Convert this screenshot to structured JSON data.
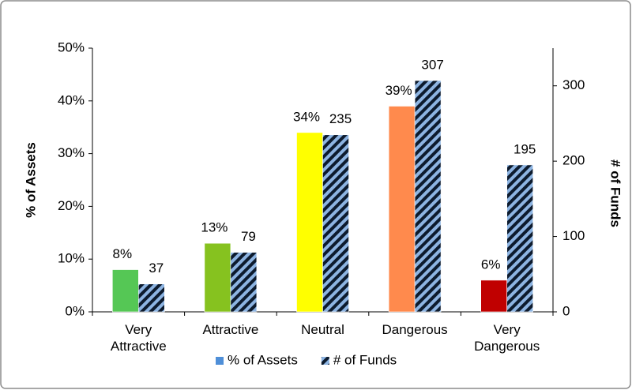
{
  "chart_data": {
    "type": "bar",
    "categories": [
      "Very Attractive",
      "Attractive",
      "Neutral",
      "Dangerous",
      "Very Dangerous"
    ],
    "series": [
      {
        "name": "% of Assets",
        "color": "#4f8fd8",
        "colors": [
          "#55c755",
          "#86c21f",
          "#ffff00",
          "#ff8a4d",
          "#c00000"
        ],
        "values": [
          8,
          13,
          34,
          39,
          6
        ],
        "value_labels": [
          "8%",
          "13%",
          "34%",
          "39%",
          "6%"
        ]
      },
      {
        "name": "# of Funds",
        "color": "#8db4e2",
        "hatch": "#0d1b2e",
        "axis": "y2",
        "values": [
          37,
          79,
          235,
          307,
          195
        ]
      }
    ],
    "ylabel": "% of Assets",
    "y2label": "# of Funds",
    "ylim": [
      0,
      50
    ],
    "yticks": [
      {
        "value": 0,
        "label": "0%"
      },
      {
        "value": 10,
        "label": "10%"
      },
      {
        "value": 20,
        "label": "20%"
      },
      {
        "value": 30,
        "label": "30%"
      },
      {
        "value": 40,
        "label": "40%"
      },
      {
        "value": 50,
        "label": "50%"
      }
    ],
    "y2lim": [
      0,
      350
    ],
    "y2ticks": [
      0,
      100,
      200,
      300
    ],
    "legend": "bottom"
  }
}
